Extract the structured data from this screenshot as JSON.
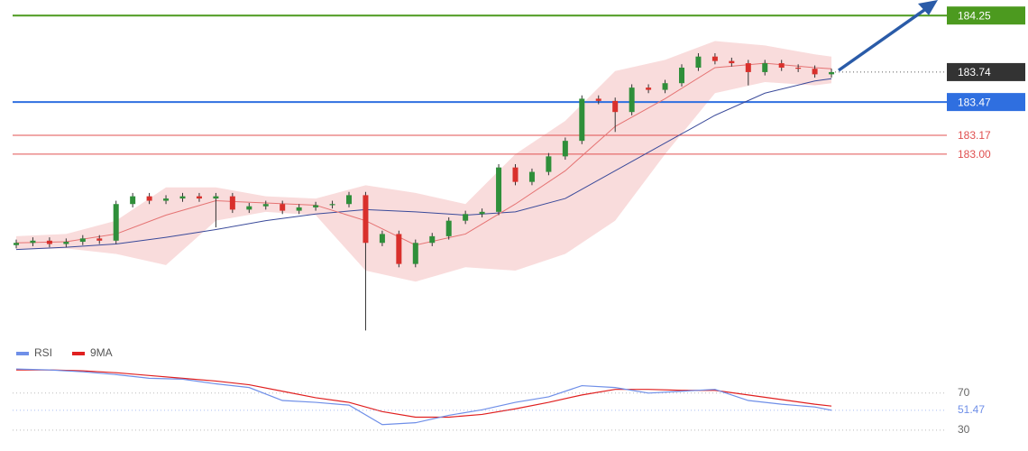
{
  "chart_data": [
    {
      "type": "candlestick",
      "ylim": [
        181.34,
        184.39
      ],
      "up_color": "#2f8f3a",
      "down_color": "#d9302c",
      "open": [
        182.18,
        182.2,
        182.22,
        182.19,
        182.21,
        182.24,
        182.22,
        182.55,
        182.62,
        182.58,
        182.6,
        182.62,
        182.6,
        182.62,
        182.5,
        182.53,
        182.55,
        182.49,
        182.52,
        182.54,
        182.55,
        182.63,
        182.2,
        182.28,
        182.01,
        182.2,
        182.26,
        182.4,
        182.46,
        182.48,
        182.88,
        182.75,
        182.84,
        182.98,
        183.12,
        183.5,
        183.48,
        183.38,
        183.6,
        183.58,
        183.64,
        183.78,
        183.88,
        183.84,
        183.82,
        183.74,
        183.82,
        183.78,
        183.77,
        183.72
      ],
      "high": [
        182.23,
        182.25,
        182.25,
        182.24,
        182.27,
        182.27,
        182.58,
        182.65,
        182.65,
        182.63,
        182.65,
        182.65,
        182.65,
        182.65,
        182.56,
        182.58,
        182.58,
        182.55,
        182.57,
        182.58,
        182.66,
        182.66,
        182.31,
        182.31,
        182.23,
        182.29,
        182.43,
        182.49,
        182.51,
        182.91,
        182.91,
        182.87,
        183.01,
        183.15,
        183.53,
        183.53,
        183.51,
        183.63,
        183.63,
        183.67,
        183.81,
        183.91,
        183.91,
        183.87,
        183.85,
        183.85,
        183.85,
        183.81,
        183.8,
        183.77
      ],
      "low": [
        182.15,
        182.17,
        182.16,
        182.16,
        182.18,
        182.19,
        182.19,
        182.52,
        182.55,
        182.55,
        182.57,
        182.57,
        182.34,
        182.47,
        182.47,
        182.5,
        182.46,
        182.46,
        182.49,
        182.51,
        182.52,
        181.41,
        182.17,
        181.98,
        181.98,
        182.17,
        182.23,
        182.37,
        182.43,
        182.45,
        182.72,
        182.72,
        182.81,
        182.95,
        183.09,
        183.45,
        183.2,
        183.35,
        183.55,
        183.55,
        183.61,
        183.75,
        183.81,
        183.79,
        183.62,
        183.71,
        183.75,
        183.74,
        183.69,
        183.69
      ],
      "close": [
        182.2,
        182.22,
        182.19,
        182.21,
        182.24,
        182.22,
        182.55,
        182.62,
        182.58,
        182.6,
        182.62,
        182.6,
        182.62,
        182.5,
        182.53,
        182.55,
        182.49,
        182.52,
        182.54,
        182.55,
        182.63,
        182.2,
        182.28,
        182.01,
        182.2,
        182.26,
        182.4,
        182.46,
        182.48,
        182.88,
        182.75,
        182.84,
        182.98,
        183.12,
        183.5,
        183.48,
        183.38,
        183.6,
        183.58,
        183.64,
        183.78,
        183.88,
        183.84,
        183.82,
        183.74,
        183.82,
        183.78,
        183.77,
        183.72,
        183.74
      ],
      "last_color": "#333333",
      "overlay_x": [
        0,
        3,
        6,
        9,
        12,
        15,
        18,
        21,
        24,
        27,
        30,
        33,
        36,
        39,
        42,
        45,
        48,
        49
      ],
      "band_color": "#f9dcdc",
      "band_upper": [
        182.26,
        182.28,
        182.4,
        182.7,
        182.7,
        182.62,
        182.6,
        182.72,
        182.65,
        182.55,
        183.0,
        183.3,
        183.75,
        183.85,
        184.02,
        183.98,
        183.9,
        183.88
      ],
      "band_lower": [
        182.14,
        182.15,
        182.1,
        182.0,
        182.4,
        182.48,
        182.45,
        181.95,
        181.85,
        181.98,
        181.95,
        182.1,
        182.4,
        183.0,
        183.55,
        183.65,
        183.62,
        183.64
      ],
      "ma_fast": {
        "color": "#e57373",
        "values": [
          182.2,
          182.21,
          182.28,
          182.45,
          182.58,
          182.56,
          182.54,
          182.4,
          182.18,
          182.28,
          182.55,
          182.85,
          183.25,
          183.5,
          183.78,
          183.82,
          183.78,
          183.77
        ]
      },
      "ma_slow": {
        "color": "#3a4a9a",
        "values": [
          182.14,
          182.16,
          182.19,
          182.25,
          182.32,
          182.4,
          182.46,
          182.5,
          182.48,
          182.45,
          182.48,
          182.6,
          182.85,
          183.1,
          183.35,
          183.55,
          183.66,
          183.68
        ]
      },
      "levels": [
        {
          "value": 184.25,
          "color": "#4c9a1f",
          "box": true
        },
        {
          "value": 183.47,
          "color": "#2f6fe0",
          "box": true
        },
        {
          "value": 183.17,
          "color": "#e05050",
          "box": false
        },
        {
          "value": 183.0,
          "label": "183.00",
          "color": "#e05050",
          "box": false
        }
      ]
    },
    {
      "type": "line",
      "ylim": [
        25,
        100
      ],
      "yticks": [
        70,
        30
      ],
      "x": [
        0,
        2,
        4,
        6,
        8,
        10,
        12,
        14,
        16,
        18,
        20,
        22,
        24,
        26,
        28,
        30,
        32,
        34,
        36,
        38,
        40,
        42,
        44,
        46,
        48,
        49
      ],
      "series": [
        {
          "name": "RSI",
          "color": "#6f8fe8",
          "values": [
            96,
            95,
            93,
            90,
            86,
            85,
            80,
            76,
            62,
            60,
            57,
            36,
            38,
            46,
            52,
            60,
            66,
            78,
            76,
            70,
            72,
            74,
            62,
            58,
            55,
            51.47
          ]
        },
        {
          "name": "9MA",
          "color": "#e02020",
          "values": [
            95,
            95,
            94,
            92,
            89,
            86,
            83,
            79,
            72,
            65,
            60,
            50,
            44,
            44,
            47,
            53,
            60,
            68,
            74,
            74,
            73,
            73,
            68,
            63,
            58,
            56
          ]
        }
      ]
    }
  ]
}
